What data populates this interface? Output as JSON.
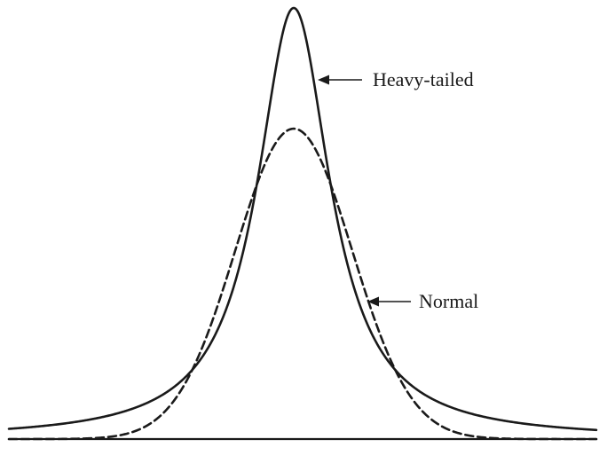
{
  "figure": {
    "labels": {
      "heavy_tailed": "Heavy-tailed",
      "normal": "Normal"
    },
    "colors": {
      "line": "#1a1a1a",
      "background": "#ffffff"
    },
    "curves": {
      "heavy_tailed": {
        "style": "solid",
        "distribution": "cauchy-like",
        "relative_peak_height": 1.0
      },
      "normal": {
        "style": "dashed",
        "distribution": "gaussian",
        "relative_peak_height": 0.72
      }
    }
  }
}
